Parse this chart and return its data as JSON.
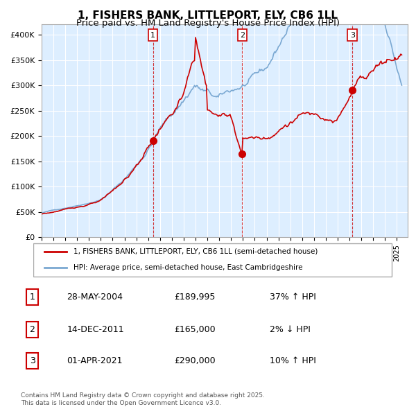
{
  "title1": "1, FISHERS BANK, LITTLEPORT, ELY, CB6 1LL",
  "title2": "Price paid vs. HM Land Registry's House Price Index (HPI)",
  "ylabel_ticks": [
    "£0",
    "£50K",
    "£100K",
    "£150K",
    "£200K",
    "£250K",
    "£300K",
    "£350K",
    "£400K"
  ],
  "ytick_vals": [
    0,
    50000,
    100000,
    150000,
    200000,
    250000,
    300000,
    350000,
    400000
  ],
  "ylim": [
    0,
    420000
  ],
  "sale_dates": [
    "2004-05-28",
    "2011-12-14",
    "2021-04-01"
  ],
  "sale_prices": [
    189995,
    165000,
    290000
  ],
  "sale_labels": [
    "1",
    "2",
    "3"
  ],
  "sale_info": [
    [
      "1",
      "28-MAY-2004",
      "£189,995",
      "37% ↑ HPI"
    ],
    [
      "2",
      "14-DEC-2011",
      "£165,000",
      "2% ↓ HPI"
    ],
    [
      "3",
      "01-APR-2021",
      "£290,000",
      "10% ↑ HPI"
    ]
  ],
  "legend_line1": "1, FISHERS BANK, LITTLEPORT, ELY, CB6 1LL (semi-detached house)",
  "legend_line2": "HPI: Average price, semi-detached house, East Cambridgeshire",
  "red_color": "#cc0000",
  "blue_color": "#7aa8d2",
  "bg_color": "#ddeeff",
  "footer": "Contains HM Land Registry data © Crown copyright and database right 2025.\nThis data is licensed under the Open Government Licence v3.0.",
  "start_year": 1995,
  "end_year": 2025
}
